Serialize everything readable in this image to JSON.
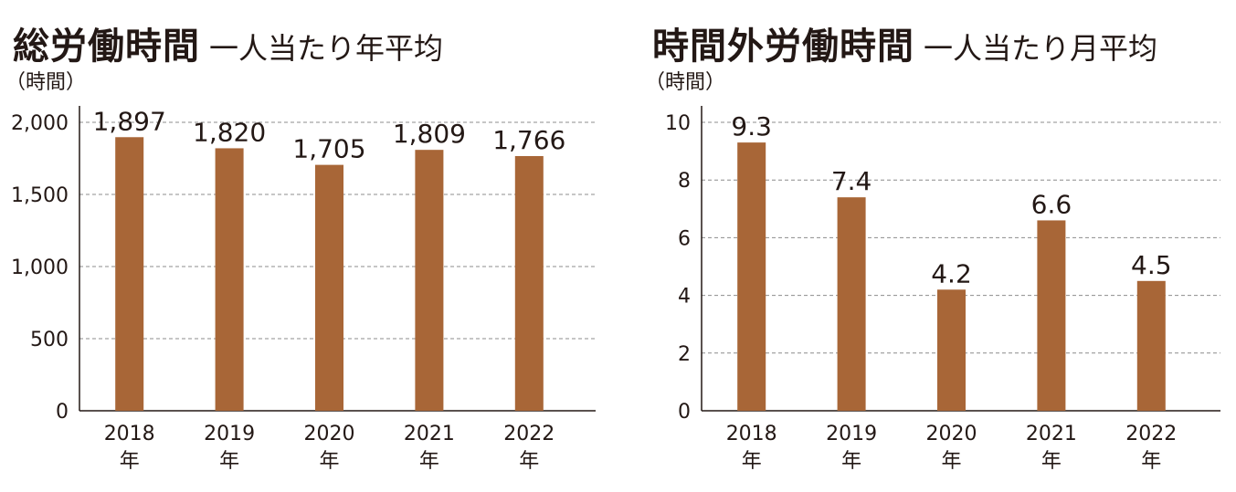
{
  "colors": {
    "bar": "#a86637",
    "axis": "#231815",
    "grid": "#8c8c8c"
  },
  "chart_data": [
    {
      "type": "bar",
      "title": "総労働時間",
      "subtitle": "一人当たり年平均",
      "ylabel": "（時間）",
      "categories": [
        {
          "year": "2018",
          "suffix": "年"
        },
        {
          "year": "2019",
          "suffix": "年"
        },
        {
          "year": "2020",
          "suffix": "年"
        },
        {
          "year": "2021",
          "suffix": "年"
        },
        {
          "year": "2022",
          "suffix": "年"
        }
      ],
      "values": [
        1897,
        1820,
        1705,
        1809,
        1766
      ],
      "value_labels": [
        "1,897",
        "1,820",
        "1,705",
        "1,809",
        "1,766"
      ],
      "yticks": [
        0,
        500,
        1000,
        1500,
        2000
      ],
      "ytick_labels": [
        "0",
        "500",
        "1,000",
        "1,500",
        "2,000"
      ],
      "ylim": [
        0,
        2000
      ],
      "grid": true
    },
    {
      "type": "bar",
      "title": "時間外労働時間",
      "subtitle": "一人当たり月平均",
      "ylabel": "（時間）",
      "categories": [
        {
          "year": "2018",
          "suffix": "年"
        },
        {
          "year": "2019",
          "suffix": "年"
        },
        {
          "year": "2020",
          "suffix": "年"
        },
        {
          "year": "2021",
          "suffix": "年"
        },
        {
          "year": "2022",
          "suffix": "年"
        }
      ],
      "values": [
        9.3,
        7.4,
        4.2,
        6.6,
        4.5
      ],
      "value_labels": [
        "9.3",
        "7.4",
        "4.2",
        "6.6",
        "4.5"
      ],
      "yticks": [
        0,
        2,
        4,
        6,
        8,
        10
      ],
      "ytick_labels": [
        "0",
        "2",
        "4",
        "6",
        "8",
        "10"
      ],
      "ylim": [
        0,
        10
      ],
      "grid": true
    }
  ]
}
